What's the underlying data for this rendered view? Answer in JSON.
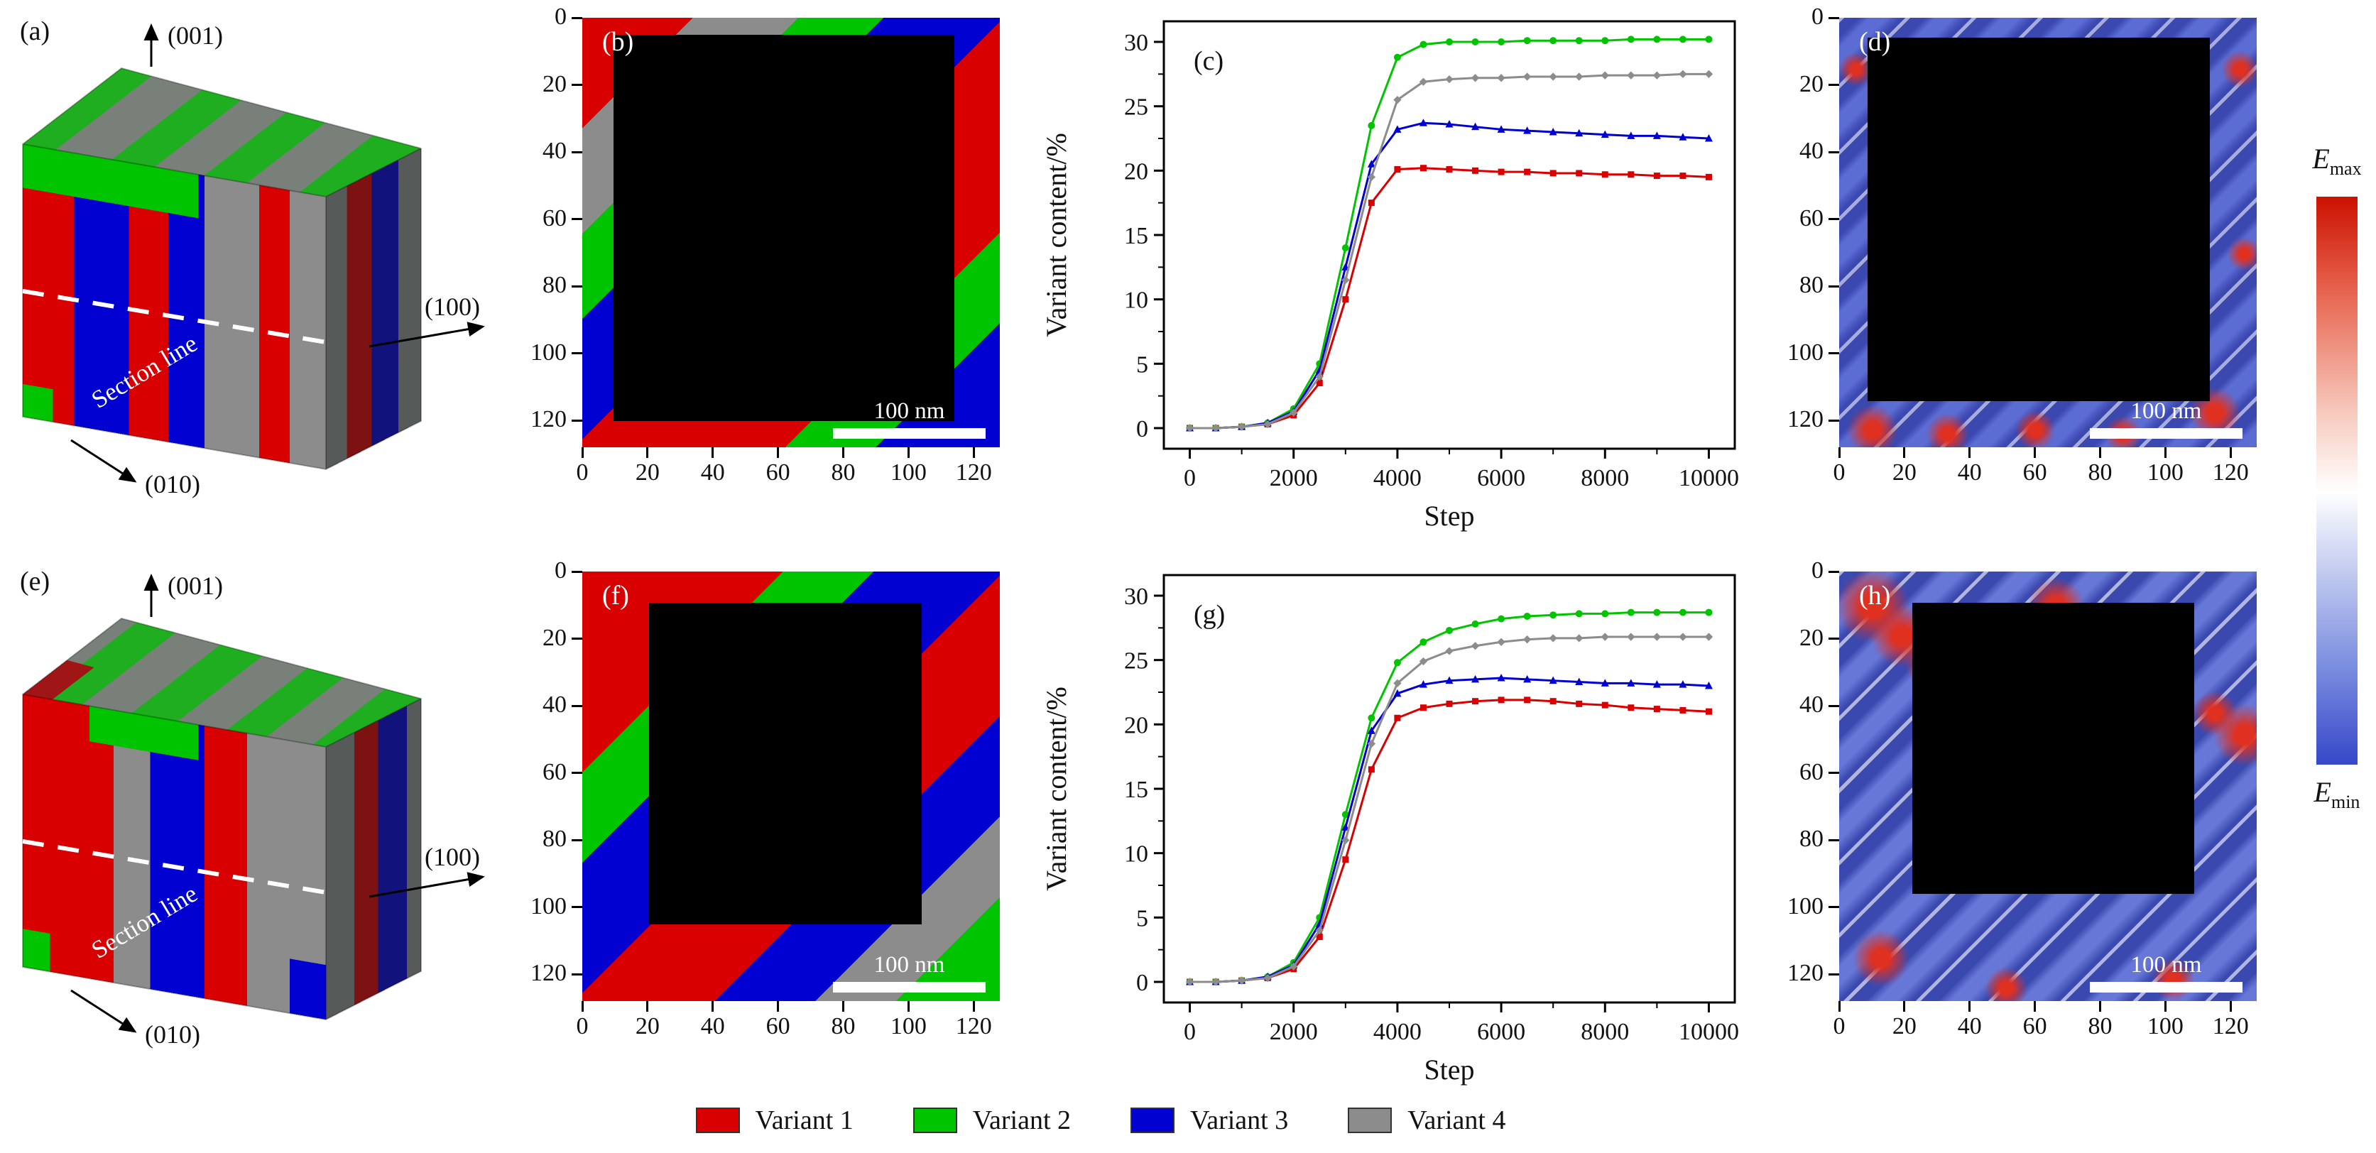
{
  "figure": {
    "panel_a": {
      "label": "(a)",
      "axis_up": "(001)",
      "axis_right": "(100)",
      "axis_down": "(010)",
      "section_line": "Section line"
    },
    "panel_b": {
      "label": "(b)",
      "scale_bar": "100 nm"
    },
    "panel_d": {
      "label": "(d)",
      "scale_bar": "100 nm"
    },
    "panel_e": {
      "label": "(e)",
      "axis_up": "(001)",
      "axis_right": "(100)",
      "axis_down": "(010)",
      "section_line": "Section line"
    },
    "panel_f": {
      "label": "(f)",
      "scale_bar": "100 nm"
    },
    "panel_h": {
      "label": "(h)",
      "scale_bar": "100 nm"
    },
    "map_axis_ticks": [
      0,
      20,
      40,
      60,
      80,
      100,
      120
    ],
    "map_extent": 128,
    "colorbar": {
      "max_main": "E",
      "max_sub": "max",
      "min_main": "E",
      "min_sub": "min",
      "top_color": "#cc1100",
      "bottom_color": "#3648c8"
    },
    "legend": [
      {
        "label": "Variant 1",
        "color": "#d80000"
      },
      {
        "label": "Variant 2",
        "color": "#00c400"
      },
      {
        "label": "Variant 3",
        "color": "#0000d0"
      },
      {
        "label": "Variant 4",
        "color": "#8c8c8c"
      }
    ]
  },
  "chart_data": [
    {
      "id": "c",
      "type": "line",
      "panel_label": "(c)",
      "xlabel": "Step",
      "ylabel": "Variant content/%",
      "xlim": [
        -500,
        10500
      ],
      "ylim": [
        -1.6,
        31.6
      ],
      "xticks": [
        0,
        2000,
        4000,
        6000,
        8000,
        10000
      ],
      "yticks": [
        0,
        5,
        10,
        15,
        20,
        25,
        30
      ],
      "legend_position": "none",
      "grid": false,
      "x": [
        0,
        500,
        1000,
        1500,
        2000,
        2500,
        3000,
        3500,
        4000,
        4500,
        5000,
        5500,
        6000,
        6500,
        7000,
        7500,
        8000,
        8500,
        9000,
        9500,
        10000
      ],
      "series": [
        {
          "name": "Variant 1",
          "color": "#d80000",
          "marker": "square",
          "values": [
            0,
            0,
            0.1,
            0.3,
            1.0,
            3.5,
            10.0,
            17.5,
            20.1,
            20.2,
            20.1,
            20.0,
            19.9,
            19.9,
            19.8,
            19.8,
            19.7,
            19.7,
            19.6,
            19.6,
            19.5
          ]
        },
        {
          "name": "Variant 2",
          "color": "#00c400",
          "marker": "circle",
          "values": [
            0,
            0,
            0.1,
            0.4,
            1.5,
            5.0,
            14.0,
            23.5,
            28.8,
            29.8,
            30.0,
            30.0,
            30.0,
            30.1,
            30.1,
            30.1,
            30.1,
            30.2,
            30.2,
            30.2,
            30.2
          ]
        },
        {
          "name": "Variant 3",
          "color": "#0000d0",
          "marker": "triangle",
          "values": [
            0,
            0,
            0.1,
            0.4,
            1.3,
            4.5,
            12.5,
            20.5,
            23.2,
            23.7,
            23.6,
            23.4,
            23.2,
            23.1,
            23.0,
            22.9,
            22.8,
            22.7,
            22.7,
            22.6,
            22.5
          ]
        },
        {
          "name": "Variant 4",
          "color": "#8c8c8c",
          "marker": "diamond",
          "values": [
            0,
            0,
            0.1,
            0.3,
            1.2,
            4.0,
            11.5,
            19.5,
            25.5,
            26.9,
            27.1,
            27.2,
            27.2,
            27.3,
            27.3,
            27.3,
            27.4,
            27.4,
            27.4,
            27.5,
            27.5
          ]
        }
      ]
    },
    {
      "id": "g",
      "type": "line",
      "panel_label": "(g)",
      "xlabel": "Step",
      "ylabel": "Variant content/%",
      "xlim": [
        -500,
        10500
      ],
      "ylim": [
        -1.6,
        31.6
      ],
      "xticks": [
        0,
        2000,
        4000,
        6000,
        8000,
        10000
      ],
      "yticks": [
        0,
        5,
        10,
        15,
        20,
        25,
        30
      ],
      "legend_position": "none",
      "grid": false,
      "x": [
        0,
        500,
        1000,
        1500,
        2000,
        2500,
        3000,
        3500,
        4000,
        4500,
        5000,
        5500,
        6000,
        6500,
        7000,
        7500,
        8000,
        8500,
        9000,
        9500,
        10000
      ],
      "series": [
        {
          "name": "Variant 1",
          "color": "#d80000",
          "marker": "square",
          "values": [
            0,
            0,
            0.1,
            0.3,
            1.0,
            3.5,
            9.5,
            16.5,
            20.5,
            21.3,
            21.6,
            21.8,
            21.9,
            21.9,
            21.8,
            21.6,
            21.5,
            21.3,
            21.2,
            21.1,
            21.0
          ]
        },
        {
          "name": "Variant 2",
          "color": "#00c400",
          "marker": "circle",
          "values": [
            0,
            0,
            0.1,
            0.4,
            1.5,
            5.0,
            13.0,
            20.5,
            24.8,
            26.4,
            27.3,
            27.8,
            28.2,
            28.4,
            28.5,
            28.6,
            28.6,
            28.7,
            28.7,
            28.7,
            28.7
          ]
        },
        {
          "name": "Variant 3",
          "color": "#0000d0",
          "marker": "triangle",
          "values": [
            0,
            0,
            0.1,
            0.4,
            1.3,
            4.5,
            12.0,
            19.5,
            22.4,
            23.1,
            23.4,
            23.5,
            23.6,
            23.5,
            23.4,
            23.3,
            23.2,
            23.2,
            23.1,
            23.1,
            23.0
          ]
        },
        {
          "name": "Variant 4",
          "color": "#8c8c8c",
          "marker": "diamond",
          "values": [
            0,
            0,
            0.1,
            0.3,
            1.2,
            4.0,
            11.0,
            18.5,
            23.2,
            24.9,
            25.7,
            26.1,
            26.4,
            26.6,
            26.7,
            26.7,
            26.8,
            26.8,
            26.8,
            26.8,
            26.8
          ]
        }
      ]
    }
  ]
}
